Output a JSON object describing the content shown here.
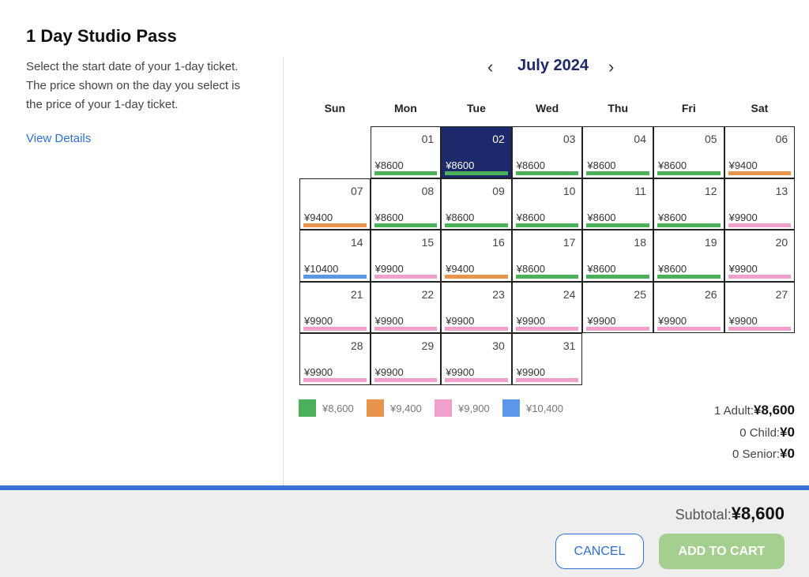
{
  "header": {
    "title": "1 Day Studio Pass"
  },
  "sidebar": {
    "description": [
      "Select the start date of your 1-day ticket.",
      "The price shown on the day you select is",
      "the price of your 1-day ticket."
    ],
    "link": "View Details"
  },
  "calendar": {
    "month": "July 2024",
    "weekdays": [
      "Sun",
      "Mon",
      "Tue",
      "Wed",
      "Thu",
      "Fri",
      "Sat"
    ],
    "days": [
      {
        "day": "01",
        "price": "¥8600",
        "color": "#4caf5a"
      },
      {
        "day": "02",
        "price": "¥8600",
        "color": "#4caf5a",
        "selected": true
      },
      {
        "day": "03",
        "price": "¥8600",
        "color": "#4caf5a"
      },
      {
        "day": "04",
        "price": "¥8600",
        "color": "#4caf5a"
      },
      {
        "day": "05",
        "price": "¥8600",
        "color": "#4caf5a"
      },
      {
        "day": "06",
        "price": "¥9400",
        "color": "#e8944a"
      },
      {
        "day": "07",
        "price": "¥9400",
        "color": "#e8944a"
      },
      {
        "day": "08",
        "price": "¥8600",
        "color": "#4caf5a"
      },
      {
        "day": "09",
        "price": "¥8600",
        "color": "#4caf5a"
      },
      {
        "day": "10",
        "price": "¥8600",
        "color": "#4caf5a"
      },
      {
        "day": "11",
        "price": "¥8600",
        "color": "#4caf5a"
      },
      {
        "day": "12",
        "price": "¥8600",
        "color": "#4caf5a"
      },
      {
        "day": "13",
        "price": "¥9900",
        "color": "#f0a0cc"
      },
      {
        "day": "14",
        "price": "¥10400",
        "color": "#5b96e8"
      },
      {
        "day": "15",
        "price": "¥9900",
        "color": "#f0a0cc"
      },
      {
        "day": "16",
        "price": "¥9400",
        "color": "#e8944a"
      },
      {
        "day": "17",
        "price": "¥8600",
        "color": "#4caf5a"
      },
      {
        "day": "18",
        "price": "¥8600",
        "color": "#4caf5a"
      },
      {
        "day": "19",
        "price": "¥8600",
        "color": "#4caf5a"
      },
      {
        "day": "20",
        "price": "¥9900",
        "color": "#f0a0cc"
      },
      {
        "day": "21",
        "price": "¥9900",
        "color": "#f0a0cc"
      },
      {
        "day": "22",
        "price": "¥9900",
        "color": "#f0a0cc"
      },
      {
        "day": "23",
        "price": "¥9900",
        "color": "#f0a0cc"
      },
      {
        "day": "24",
        "price": "¥9900",
        "color": "#f0a0cc"
      },
      {
        "day": "25",
        "price": "¥9900",
        "color": "#f0a0cc"
      },
      {
        "day": "26",
        "price": "¥9900",
        "color": "#f0a0cc"
      },
      {
        "day": "27",
        "price": "¥9900",
        "color": "#f0a0cc"
      },
      {
        "day": "28",
        "price": "¥9900",
        "color": "#f0a0cc"
      },
      {
        "day": "29",
        "price": "¥9900",
        "color": "#f0a0cc"
      },
      {
        "day": "30",
        "price": "¥9900",
        "color": "#f0a0cc"
      },
      {
        "day": "31",
        "price": "¥9900",
        "color": "#f0a0cc"
      }
    ],
    "legend": [
      {
        "label": "¥8,600",
        "color": "#4caf5a"
      },
      {
        "label": "¥9,400",
        "color": "#e8944a"
      },
      {
        "label": "¥9,900",
        "color": "#f0a0cc"
      },
      {
        "label": "¥10,400",
        "color": "#5b96e8"
      }
    ]
  },
  "summary": [
    {
      "label": "1 Adult:",
      "price": "¥8,600"
    },
    {
      "label": "0 Child:",
      "price": "¥0"
    },
    {
      "label": "0 Senior:",
      "price": "¥0"
    }
  ],
  "footer": {
    "subtotal_label": "Subtotal:",
    "subtotal": "¥8,600",
    "cancel": "CANCEL",
    "add_to_cart": "ADD TO CART"
  }
}
